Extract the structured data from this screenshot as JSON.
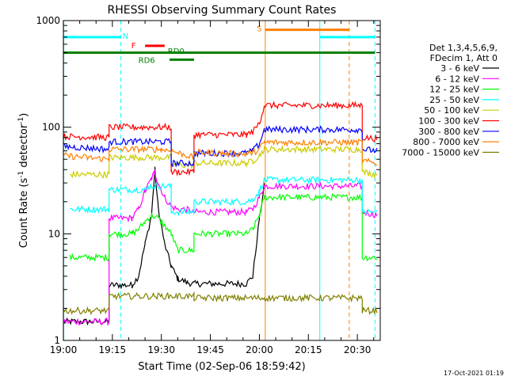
{
  "chart_data": {
    "type": "line",
    "title": "RHESSI Observing Summary Count Rates",
    "xlabel": "Start Time (02-Sep-06 18:59:42)",
    "ylabel_main": "Count Rate (s",
    "ylabel_sup1": "-1",
    "ylabel_mid": " detector",
    "ylabel_sup2": "-1",
    "ylabel_end": ")",
    "yscale": "log",
    "ylim": [
      1,
      1000
    ],
    "xlim_minutes": [
      0,
      97
    ],
    "x_ticks": [
      {
        "m": 0,
        "label": "19:00"
      },
      {
        "m": 15,
        "label": "19:15"
      },
      {
        "m": 30,
        "label": "19:30"
      },
      {
        "m": 45,
        "label": "19:45"
      },
      {
        "m": 60,
        "label": "20:00"
      },
      {
        "m": 75,
        "label": "20:15"
      },
      {
        "m": 90,
        "label": "20:30"
      }
    ],
    "y_ticks": [
      {
        "v": 1,
        "label": "1"
      },
      {
        "v": 10,
        "label": "10"
      },
      {
        "v": 100,
        "label": "100"
      },
      {
        "v": 1000,
        "label": "1000"
      }
    ],
    "legend_header": [
      "Det 1,3,4,5,6,9,",
      "FDecim 1, Att 0"
    ],
    "series": [
      {
        "name": "3 - 6 keV",
        "color": "#000000",
        "points": [
          [
            0,
            1.5
          ],
          [
            14,
            1.5
          ],
          [
            14,
            3.3
          ],
          [
            21,
            3.3
          ],
          [
            23,
            4
          ],
          [
            25,
            8
          ],
          [
            27,
            15
          ],
          [
            28,
            40
          ],
          [
            29,
            18
          ],
          [
            31,
            8
          ],
          [
            33,
            5
          ],
          [
            35,
            3.8
          ],
          [
            38,
            3.5
          ],
          [
            40,
            3.4
          ],
          [
            56,
            3.4
          ],
          [
            58,
            4
          ],
          [
            60,
            14
          ],
          [
            61.5,
            28
          ]
        ]
      },
      {
        "name": "6 - 12 keV",
        "color": "#ff00ff",
        "points": [
          [
            0,
            1.5
          ],
          [
            14,
            1.5
          ],
          [
            14,
            14
          ],
          [
            21,
            14
          ],
          [
            23,
            17
          ],
          [
            25,
            25
          ],
          [
            27,
            33
          ],
          [
            28,
            38
          ],
          [
            29,
            30
          ],
          [
            31,
            22
          ],
          [
            33,
            18
          ],
          [
            35,
            17
          ],
          [
            38,
            17
          ],
          [
            40,
            16
          ],
          [
            56,
            16
          ],
          [
            58,
            17
          ],
          [
            60,
            22
          ],
          [
            61.5,
            28
          ],
          [
            91.5,
            28
          ],
          [
            91.5,
            16
          ],
          [
            96,
            15
          ]
        ]
      },
      {
        "name": "12 - 25 keV",
        "color": "#00ff00",
        "points": [
          [
            2,
            6
          ],
          [
            14,
            6
          ],
          [
            14,
            10
          ],
          [
            21,
            10
          ],
          [
            23,
            11
          ],
          [
            25,
            13
          ],
          [
            27,
            15
          ],
          [
            29,
            14
          ],
          [
            31,
            12
          ],
          [
            33,
            10
          ],
          [
            35,
            7
          ],
          [
            40,
            7
          ],
          [
            40,
            10
          ],
          [
            56,
            10
          ],
          [
            58,
            11
          ],
          [
            60,
            15
          ],
          [
            61.5,
            22
          ],
          [
            91.5,
            22
          ],
          [
            91.5,
            6
          ],
          [
            96,
            6
          ]
        ]
      },
      {
        "name": "25 - 50 keV",
        "color": "#00ffff",
        "points": [
          [
            2,
            17
          ],
          [
            14,
            17
          ],
          [
            14,
            26
          ],
          [
            26,
            26
          ],
          [
            26,
            28
          ],
          [
            33,
            28
          ],
          [
            33,
            16
          ],
          [
            40,
            16
          ],
          [
            40,
            20
          ],
          [
            56,
            20
          ],
          [
            58,
            21
          ],
          [
            60,
            25
          ],
          [
            61.5,
            32
          ],
          [
            91.5,
            32
          ],
          [
            91.5,
            16
          ],
          [
            96,
            16
          ]
        ]
      },
      {
        "name": "50 - 100 keV",
        "color": "#cccc00",
        "points": [
          [
            2,
            36
          ],
          [
            14,
            36
          ],
          [
            14,
            52
          ],
          [
            33,
            52
          ],
          [
            33,
            44
          ],
          [
            40,
            44
          ],
          [
            40,
            46
          ],
          [
            56,
            46
          ],
          [
            58,
            48
          ],
          [
            60,
            55
          ],
          [
            61.5,
            62
          ],
          [
            91.5,
            62
          ],
          [
            91.5,
            38
          ],
          [
            96,
            36
          ]
        ]
      },
      {
        "name": "100 - 300 keV",
        "color": "#ff0000",
        "points": [
          [
            0,
            82
          ],
          [
            14,
            80
          ],
          [
            14,
            100
          ],
          [
            33,
            100
          ],
          [
            33,
            38
          ],
          [
            40,
            38
          ],
          [
            40,
            85
          ],
          [
            56,
            85
          ],
          [
            58,
            90
          ],
          [
            60,
            110
          ],
          [
            61.5,
            160
          ],
          [
            91.5,
            160
          ],
          [
            91.5,
            80
          ],
          [
            96,
            78
          ]
        ]
      },
      {
        "name": "300 - 800 keV",
        "color": "#0000ff",
        "points": [
          [
            0,
            66
          ],
          [
            14,
            62
          ],
          [
            14,
            73
          ],
          [
            33,
            73
          ],
          [
            33,
            46
          ],
          [
            40,
            46
          ],
          [
            40,
            57
          ],
          [
            56,
            57
          ],
          [
            58,
            60
          ],
          [
            60,
            70
          ],
          [
            61.5,
            95
          ],
          [
            91.5,
            95
          ],
          [
            91.5,
            62
          ],
          [
            96,
            60
          ]
        ]
      },
      {
        "name": "800 - 7000 keV",
        "color": "#ff8000",
        "points": [
          [
            0,
            54
          ],
          [
            14,
            50
          ],
          [
            14,
            62
          ],
          [
            30,
            62
          ],
          [
            33,
            60
          ],
          [
            40,
            52
          ],
          [
            40,
            58
          ],
          [
            56,
            56
          ],
          [
            58,
            58
          ],
          [
            60,
            62
          ],
          [
            61.5,
            72
          ],
          [
            91.5,
            72
          ],
          [
            91.5,
            48
          ],
          [
            96,
            46
          ]
        ]
      },
      {
        "name": "7000 - 15000 keV",
        "color": "#808000",
        "points": [
          [
            0,
            1.9
          ],
          [
            14,
            1.9
          ],
          [
            14,
            2.6
          ],
          [
            40,
            2.6
          ],
          [
            40,
            2.5
          ],
          [
            61.5,
            2.5
          ],
          [
            91.5,
            2.5
          ],
          [
            91.5,
            1.9
          ],
          [
            96,
            1.9
          ]
        ]
      }
    ],
    "vlines": [
      {
        "m": 0.1,
        "color": "#00ffff",
        "style": "solid"
      },
      {
        "m": 17.6,
        "color": "#00ffff",
        "style": "dashed"
      },
      {
        "m": 61.8,
        "color": "#ff8000",
        "style": "solid"
      },
      {
        "m": 78.5,
        "color": "#00ffff",
        "style": "solid"
      },
      {
        "m": 87.5,
        "color": "#ff8000",
        "style": "dashed"
      },
      {
        "m": 95.4,
        "color": "#00ffff",
        "style": "dashed"
      }
    ],
    "flag_bars": [
      {
        "label": "N",
        "color": "#00ffff",
        "x0": 0,
        "x1": 17.6,
        "y": 700,
        "label_m": 19,
        "label_y": 720
      },
      {
        "label": "N",
        "color": "#00ffff",
        "x0": 78.5,
        "x1": 95.4,
        "y": 700,
        "label_m": null,
        "label_y": null
      },
      {
        "label": "F",
        "color": "#ff0000",
        "x0": 25,
        "x1": 31,
        "y": 580,
        "label_m": 21.5,
        "label_y": 590
      },
      {
        "label": "RD0",
        "color": "#008000",
        "x0": 0,
        "x1": 95.4,
        "y": 500,
        "label_m": 34.5,
        "label_y": 520
      },
      {
        "label": "RD6",
        "color": "#008000",
        "x0": 32.5,
        "x1": 40,
        "y": 430,
        "label_m": 25.5,
        "label_y": 430
      },
      {
        "label": "S",
        "color": "#ff8000",
        "x0": 61.8,
        "x1": 87.5,
        "y": 820,
        "label_m": 60,
        "label_y": 850
      }
    ]
  },
  "timestamp": "17-Oct-2021 01:19"
}
